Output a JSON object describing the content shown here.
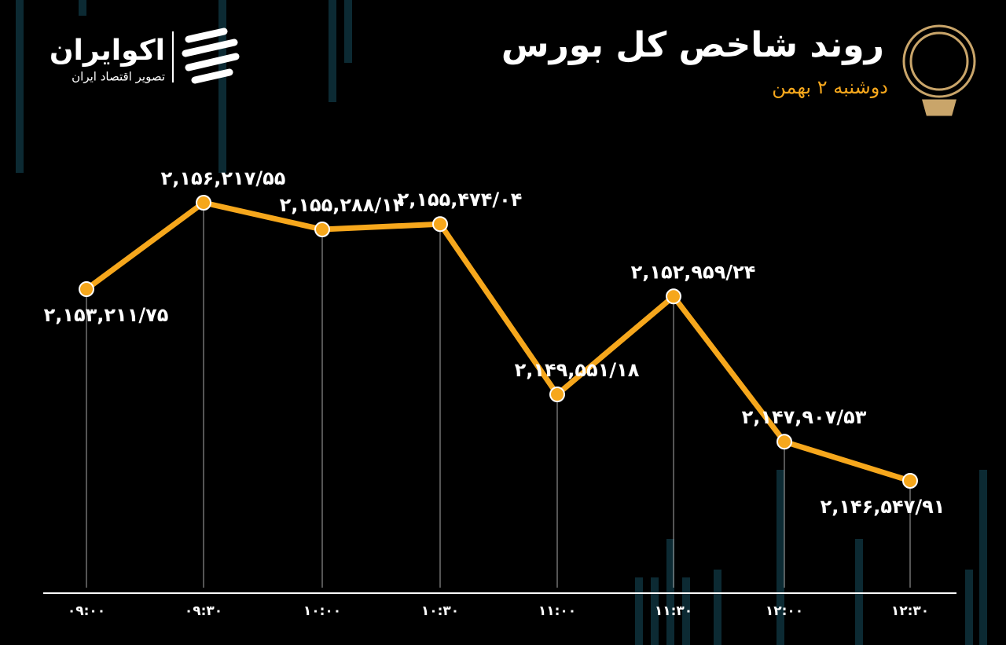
{
  "chart_data": {
    "type": "line",
    "title": "روند شاخص کل بورس",
    "subtitle": "دوشنبه ۲ بهمن",
    "categories": [
      "۰۹:۰۰",
      "۰۹:۳۰",
      "۱۰:۰۰",
      "۱۰:۳۰",
      "۱۱:۰۰",
      "۱۱:۳۰",
      "۱۲:۰۰",
      "۱۲:۳۰"
    ],
    "values": [
      2153211.75,
      2156217.55,
      2155288.14,
      2155474.04,
      2149551.18,
      2152959.24,
      2147907.53,
      2146547.91
    ],
    "value_labels": [
      "۲,۱۵۳,۲۱۱/۷۵",
      "۲,۱۵۶,۲۱۷/۵۵",
      "۲,۱۵۵,۲۸۸/۱۴",
      "۲,۱۵۵,۴۷۴/۰۴",
      "۲,۱۴۹,۵۵۱/۱۸",
      "۲,۱۵۲,۹۵۹/۲۴",
      "۲,۱۴۷,۹۰۷/۵۳",
      "۲,۱۴۶,۵۴۷/۹۱"
    ],
    "color": "#f6a71c"
  },
  "logo": {
    "name": "اکوایران",
    "tagline": "تصویر اقتصاد ایران"
  }
}
